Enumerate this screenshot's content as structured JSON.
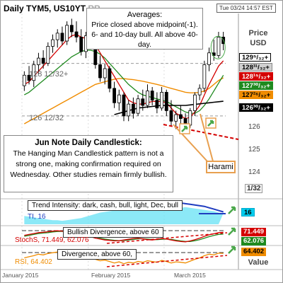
{
  "header": {
    "title": "Daily TYM5, US10YT",
    "title_suffix": "RR",
    "date": "Tue 03/24 14:57 EST"
  },
  "axis": {
    "price_title": "Price",
    "price_unit": "USD",
    "scale_label": "1/32",
    "value_title": "Value"
  },
  "price_ticks": [
    "126",
    "125",
    "124"
  ],
  "price_tags": [
    {
      "label": "129⁵/₃₂+",
      "bg": "#ffffff",
      "fg": "#000000",
      "border": "#000000"
    },
    {
      "label": "128³¹/₃₂+",
      "bg": "#d0d0d0",
      "fg": "#000000",
      "border": "#888888"
    },
    {
      "label": "128¹⁵/₃₂+",
      "bg": "#d40000",
      "fg": "#ffffff",
      "border": "#d40000"
    },
    {
      "label": "127³⁰/₃₂+",
      "bg": "#1f8a1f",
      "fg": "#ffffff",
      "border": "#1f8a1f"
    },
    {
      "label": "127²⁶/₃₂+",
      "bg": "#f08c00",
      "fg": "#000000",
      "border": "#f08c00"
    },
    {
      "label": "126³⁰/₃₂+",
      "bg": "#000000",
      "fg": "#ffffff",
      "border": "#000000"
    }
  ],
  "chart_labels": {
    "level_128": "128 12/32+",
    "level_126": "126 12/32"
  },
  "annotations": {
    "averages_title": "Averages:",
    "averages_body": "Price closed above midpoint(-1). 6- and  10-day bull. All above 40-day.",
    "note_title": "Jun Note Daily Candlestick:",
    "note_body": "The Hanging Man Candlestick pattern is not a strong one, making confirmation required on Wednesday. Other studies remain firmly bullish.",
    "harami": "Harami"
  },
  "indicators": {
    "trend_box": "Trend Intensity: dark, cash, bull, light, Dec, bull",
    "ti_label": "TI, 16",
    "ti_value": "16",
    "stoch_box": "Bullish Divergence, above 60",
    "stoch_label": "StochS, 71.449, 62.076",
    "stoch_v1": "71.449",
    "stoch_v2": "62.076",
    "rsi_box": "Divergence, above 60,",
    "rsi_label": "RSI, 64.402",
    "rsi_value": "64.402"
  },
  "xaxis": {
    "labels": [
      "January 2015",
      "February 2015",
      "March 2015"
    ]
  },
  "colors": {
    "bull": "#1f8a1f",
    "bear": "#d40000",
    "ma_red": "#d40000",
    "ma_green": "#1f8a1f",
    "ma_orange": "#f08c00",
    "ma_black": "#000000",
    "highlight": "#f0a050"
  },
  "chart_data": {
    "type": "candlestick",
    "title": "Daily TYM5, US10YT",
    "ylabel": "Price USD",
    "ylim": [
      123.3,
      130.3
    ],
    "candles": [
      {
        "o": 127.55,
        "h": 128.1,
        "l": 127.35,
        "c": 127.95
      },
      {
        "o": 127.95,
        "h": 128.3,
        "l": 127.6,
        "c": 127.75
      },
      {
        "o": 127.75,
        "h": 128.5,
        "l": 127.5,
        "c": 128.35
      },
      {
        "o": 128.35,
        "h": 128.8,
        "l": 128.0,
        "c": 128.6
      },
      {
        "o": 128.6,
        "h": 128.9,
        "l": 128.2,
        "c": 128.4
      },
      {
        "o": 128.4,
        "h": 129.2,
        "l": 128.3,
        "c": 129.05
      },
      {
        "o": 129.05,
        "h": 129.5,
        "l": 128.8,
        "c": 129.3
      },
      {
        "o": 129.3,
        "h": 129.7,
        "l": 129.0,
        "c": 129.55
      },
      {
        "o": 129.55,
        "h": 129.8,
        "l": 129.1,
        "c": 129.25
      },
      {
        "o": 129.25,
        "h": 130.0,
        "l": 129.1,
        "c": 129.85
      },
      {
        "o": 129.85,
        "h": 130.1,
        "l": 129.4,
        "c": 129.6
      },
      {
        "o": 129.6,
        "h": 130.0,
        "l": 129.2,
        "c": 129.4
      },
      {
        "o": 129.4,
        "h": 129.7,
        "l": 128.7,
        "c": 128.85
      },
      {
        "o": 128.85,
        "h": 129.6,
        "l": 128.6,
        "c": 129.45
      },
      {
        "o": 129.45,
        "h": 129.8,
        "l": 129.0,
        "c": 129.15
      },
      {
        "o": 129.15,
        "h": 129.3,
        "l": 128.2,
        "c": 128.35
      },
      {
        "o": 128.35,
        "h": 128.7,
        "l": 127.7,
        "c": 127.85
      },
      {
        "o": 127.85,
        "h": 128.4,
        "l": 127.6,
        "c": 128.2
      },
      {
        "o": 128.2,
        "h": 128.3,
        "l": 127.3,
        "c": 127.45
      },
      {
        "o": 127.45,
        "h": 127.7,
        "l": 126.7,
        "c": 126.9
      },
      {
        "o": 126.9,
        "h": 127.4,
        "l": 126.6,
        "c": 127.2
      },
      {
        "o": 127.2,
        "h": 127.3,
        "l": 126.2,
        "c": 126.4
      },
      {
        "o": 126.4,
        "h": 127.0,
        "l": 126.2,
        "c": 126.85
      },
      {
        "o": 126.85,
        "h": 127.1,
        "l": 126.3,
        "c": 126.5
      },
      {
        "o": 126.5,
        "h": 127.2,
        "l": 126.4,
        "c": 127.05
      },
      {
        "o": 127.05,
        "h": 127.4,
        "l": 126.6,
        "c": 126.8
      },
      {
        "o": 126.8,
        "h": 127.6,
        "l": 126.7,
        "c": 127.35
      },
      {
        "o": 127.35,
        "h": 127.5,
        "l": 126.8,
        "c": 127.0
      },
      {
        "o": 127.0,
        "h": 127.3,
        "l": 126.5,
        "c": 126.7
      },
      {
        "o": 126.7,
        "h": 127.5,
        "l": 126.6,
        "c": 127.3
      },
      {
        "o": 127.3,
        "h": 127.4,
        "l": 126.4,
        "c": 126.6
      },
      {
        "o": 126.6,
        "h": 127.0,
        "l": 126.0,
        "c": 126.2
      },
      {
        "o": 126.2,
        "h": 126.6,
        "l": 125.9,
        "c": 126.45
      },
      {
        "o": 126.45,
        "h": 126.8,
        "l": 126.1,
        "c": 126.3
      },
      {
        "o": 126.3,
        "h": 126.5,
        "l": 125.9,
        "c": 126.05
      },
      {
        "o": 126.05,
        "h": 126.7,
        "l": 125.95,
        "c": 126.6
      },
      {
        "o": 126.6,
        "h": 127.3,
        "l": 126.4,
        "c": 127.2
      },
      {
        "o": 127.2,
        "h": 127.6,
        "l": 127.0,
        "c": 127.45
      },
      {
        "o": 127.45,
        "h": 128.5,
        "l": 127.3,
        "c": 128.35
      },
      {
        "o": 128.35,
        "h": 129.0,
        "l": 128.1,
        "c": 128.8
      },
      {
        "o": 128.8,
        "h": 129.3,
        "l": 128.5,
        "c": 128.7
      },
      {
        "o": 128.7,
        "h": 129.6,
        "l": 128.6,
        "c": 129.4
      },
      {
        "o": 129.4,
        "h": 129.6,
        "l": 128.9,
        "c": 129.15
      }
    ],
    "ma_red": [
      127.6,
      127.7,
      127.9,
      128.1,
      128.3,
      128.5,
      128.7,
      128.9,
      129.1,
      129.3,
      129.45,
      129.5,
      129.4,
      129.35,
      129.3,
      129.1,
      128.8,
      128.5,
      128.2,
      127.9,
      127.6,
      127.3,
      127.0,
      126.9,
      126.85,
      126.85,
      126.9,
      126.95,
      126.95,
      126.95,
      126.9,
      126.7,
      126.5,
      126.4,
      126.3,
      126.35,
      126.55,
      126.8,
      127.2,
      127.6,
      127.95,
      128.3,
      128.5
    ],
    "ma_green": [
      127.2,
      127.3,
      127.45,
      127.6,
      127.75,
      127.9,
      128.05,
      128.2,
      128.35,
      128.5,
      128.65,
      128.75,
      128.85,
      128.9,
      128.9,
      128.85,
      128.75,
      128.6,
      128.4,
      128.2,
      128.0,
      127.8,
      127.6,
      127.45,
      127.3,
      127.2,
      127.15,
      127.1,
      127.05,
      127.0,
      126.95,
      126.85,
      126.75,
      126.65,
      126.55,
      126.5,
      126.5,
      126.6,
      126.8,
      127.05,
      127.35,
      127.65,
      127.95
    ],
    "ma_orange": [
      126.1,
      126.2,
      126.3,
      126.4,
      126.5,
      126.6,
      126.7,
      126.8,
      126.9,
      127.0,
      127.1,
      127.2,
      127.3,
      127.4,
      127.5,
      127.6,
      127.65,
      127.7,
      127.75,
      127.8,
      127.82,
      127.82,
      127.8,
      127.78,
      127.75,
      127.72,
      127.68,
      127.64,
      127.6,
      127.55,
      127.5,
      127.45,
      127.4,
      127.35,
      127.3,
      127.28,
      127.28,
      127.3,
      127.35,
      127.45,
      127.6,
      127.75,
      127.85
    ],
    "ma_black": [
      null,
      null,
      null,
      null,
      null,
      null,
      null,
      null,
      null,
      null,
      null,
      null,
      null,
      null,
      null,
      null,
      null,
      null,
      null,
      126.45,
      126.5,
      126.55,
      126.6,
      126.65,
      126.7,
      126.72,
      126.74,
      126.76,
      126.78,
      126.8,
      126.8,
      126.8,
      126.8,
      126.8,
      126.8,
      126.82,
      126.84,
      126.86,
      126.88,
      126.9,
      126.92,
      126.94,
      126.96
    ],
    "ti": [
      12,
      11,
      10,
      9,
      8,
      7,
      6,
      6,
      5,
      6,
      7,
      8,
      9,
      11,
      13,
      15,
      17,
      18,
      19,
      20,
      21,
      20,
      21,
      22,
      23,
      22,
      21,
      22,
      23,
      22,
      21,
      22,
      23,
      24,
      25,
      24,
      23,
      22,
      21,
      20,
      19,
      17,
      16
    ],
    "ti_prev": [
      null,
      null,
      null,
      null,
      null,
      null,
      null,
      null,
      null,
      null,
      null,
      null,
      null,
      null,
      null,
      null,
      null,
      null,
      null,
      null,
      null,
      null,
      null,
      null,
      null,
      null,
      null,
      24,
      26,
      27,
      28,
      29,
      30,
      31,
      30,
      29,
      28,
      27,
      26,
      24,
      22,
      20,
      18
    ],
    "stoch_k": [
      55,
      60,
      65,
      70,
      72,
      75,
      78,
      80,
      78,
      75,
      72,
      70,
      62,
      55,
      48,
      40,
      35,
      30,
      28,
      25,
      26,
      30,
      34,
      38,
      40,
      36,
      32,
      30,
      34,
      38,
      35,
      30,
      25,
      22,
      20,
      25,
      32,
      40,
      50,
      58,
      64,
      70,
      71.449
    ],
    "stoch_d": [
      50,
      55,
      60,
      65,
      68,
      70,
      74,
      76,
      77,
      76,
      74,
      72,
      67,
      60,
      53,
      46,
      40,
      35,
      31,
      28,
      26,
      27,
      30,
      33,
      36,
      37,
      35,
      33,
      32,
      34,
      35,
      33,
      29,
      25,
      22,
      22,
      26,
      32,
      40,
      48,
      55,
      60,
      62.076
    ],
    "rsi": [
      52,
      55,
      58,
      62,
      60,
      64,
      66,
      68,
      65,
      68,
      64,
      60,
      54,
      58,
      54,
      48,
      44,
      46,
      42,
      38,
      41,
      36,
      40,
      38,
      42,
      40,
      44,
      42,
      40,
      45,
      42,
      38,
      41,
      40,
      38,
      43,
      48,
      52,
      58,
      62,
      60,
      65,
      64.402
    ]
  }
}
